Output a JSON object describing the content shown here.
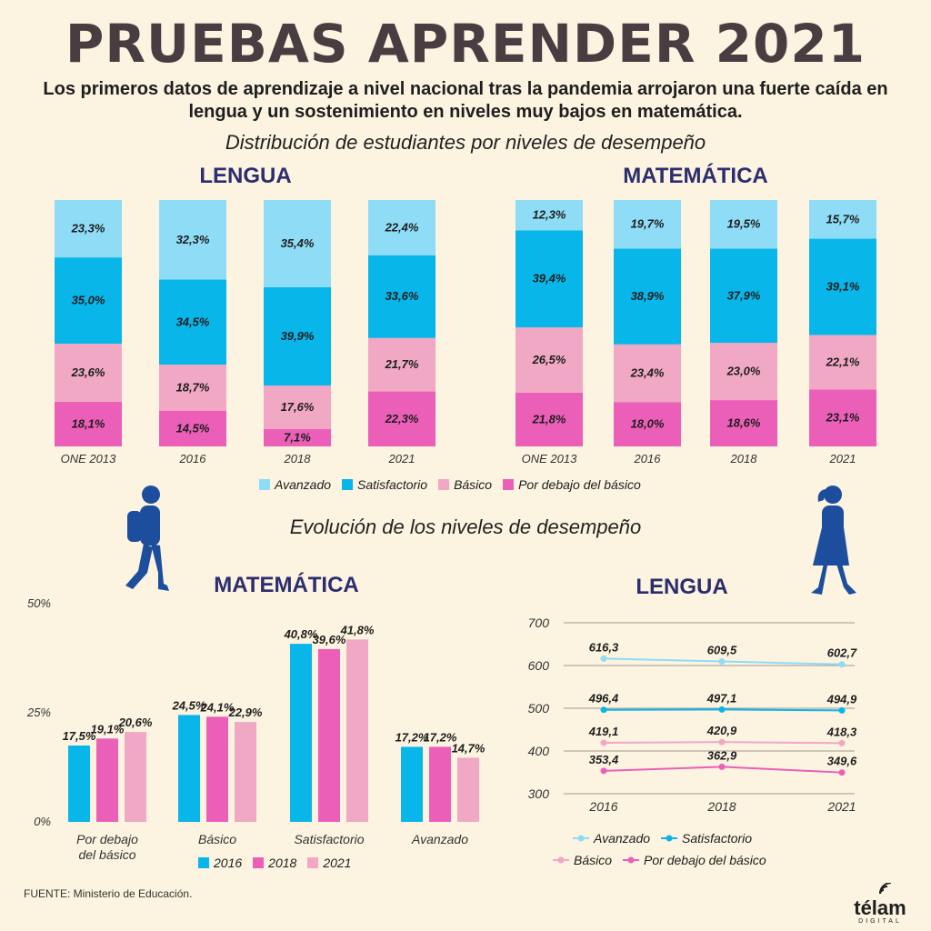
{
  "header": {
    "title": "PRUEBAS APRENDER 2021",
    "subtitle": "Los primeros datos de aprendizaje a nivel nacional tras la pandemia arrojaron una fuerte caída en lengua y un sostenimiento en niveles muy bajos en matemática."
  },
  "section1_title": "Distribución de estudiantes por niveles de desempeño",
  "section2_title": "Evolución de los niveles de desempeño",
  "colors": {
    "avanzado": "#8fdcf7",
    "satisfactorio": "#08b6ea",
    "basico": "#f0a8c4",
    "por_debajo": "#ec5fb8",
    "y2016": "#08b6ea",
    "y2018": "#ec5fb8",
    "y2021": "#f0a8c4",
    "heading": "#2b2d6e",
    "silhouette": "#1d4e9e"
  },
  "legend_levels": [
    "Avanzado",
    "Satisfactorio",
    "Básico",
    "Por debajo del básico"
  ],
  "legend_years": [
    "2016",
    "2018",
    "2021"
  ],
  "chart_data": [
    {
      "type": "bar",
      "stacked": true,
      "title": "LENGUA",
      "categories": [
        "ONE 2013",
        "2016",
        "2018",
        "2021"
      ],
      "series": [
        {
          "name": "Por debajo del básico",
          "values": [
            18.1,
            14.5,
            7.1,
            22.3
          ],
          "labels": [
            "18,1%",
            "14,5%",
            "7,1%",
            "22,3%"
          ]
        },
        {
          "name": "Básico",
          "values": [
            23.6,
            18.7,
            17.6,
            21.7
          ],
          "labels": [
            "23,6%",
            "18,7%",
            "17,6%",
            "21,7%"
          ]
        },
        {
          "name": "Satisfactorio",
          "values": [
            35.0,
            34.5,
            39.9,
            33.6
          ],
          "labels": [
            "35,0%",
            "34,5%",
            "39,9%",
            "33,6%"
          ]
        },
        {
          "name": "Avanzado",
          "values": [
            23.3,
            32.3,
            35.4,
            22.4
          ],
          "labels": [
            "23,3%",
            "32,3%",
            "35,4%",
            "22,4%"
          ]
        }
      ]
    },
    {
      "type": "bar",
      "stacked": true,
      "title": "MATEMÁTICA",
      "categories": [
        "ONE 2013",
        "2016",
        "2018",
        "2021"
      ],
      "series": [
        {
          "name": "Por debajo del básico",
          "values": [
            21.8,
            18.0,
            18.6,
            23.1
          ],
          "labels": [
            "21,8%",
            "18,0%",
            "18,6%",
            "23,1%"
          ]
        },
        {
          "name": "Básico",
          "values": [
            26.5,
            23.4,
            23.0,
            22.1
          ],
          "labels": [
            "26,5%",
            "23,4%",
            "23,0%",
            "22,1%"
          ]
        },
        {
          "name": "Satisfactorio",
          "values": [
            39.4,
            38.9,
            37.9,
            39.1
          ],
          "labels": [
            "39,4%",
            "38,9%",
            "37,9%",
            "39,1%"
          ]
        },
        {
          "name": "Avanzado",
          "values": [
            12.3,
            19.7,
            19.5,
            15.7
          ],
          "labels": [
            "12,3%",
            "19,7%",
            "19,5%",
            "15,7%"
          ]
        }
      ]
    },
    {
      "type": "bar",
      "title": "MATEMÁTICA",
      "categories": [
        "Por debajo|del básico",
        "Básico",
        "Satisfactorio",
        "Avanzado"
      ],
      "ylim": [
        0,
        50
      ],
      "yticks": [
        0,
        25,
        50
      ],
      "ytick_labels": [
        "0%",
        "25%",
        "50%"
      ],
      "series": [
        {
          "name": "2016",
          "values": [
            17.5,
            24.5,
            40.8,
            17.2
          ],
          "labels": [
            "17,5%",
            "24,5%",
            "40,8%",
            "17,2%"
          ]
        },
        {
          "name": "2018",
          "values": [
            19.1,
            24.1,
            39.6,
            17.2
          ],
          "labels": [
            "19,1%",
            "24,1%",
            "39,6%",
            "17,2%"
          ]
        },
        {
          "name": "2021",
          "values": [
            20.6,
            22.9,
            41.8,
            14.7
          ],
          "labels": [
            "20,6%",
            "22,9%",
            "41,8%",
            "14,7%"
          ]
        }
      ]
    },
    {
      "type": "line",
      "title": "LENGUA",
      "x": [
        "2016",
        "2018",
        "2021"
      ],
      "ylim": [
        300,
        700
      ],
      "yticks": [
        300,
        400,
        500,
        600,
        700
      ],
      "series": [
        {
          "name": "Avanzado",
          "values": [
            616.3,
            609.5,
            602.7
          ],
          "labels": [
            "616,3",
            "609,5",
            "602,7"
          ]
        },
        {
          "name": "Satisfactorio",
          "values": [
            496.4,
            497.1,
            494.9
          ],
          "labels": [
            "496,4",
            "497,1",
            "494,9"
          ]
        },
        {
          "name": "Básico",
          "values": [
            419.1,
            420.9,
            418.3
          ],
          "labels": [
            "419,1",
            "420,9",
            "418,3"
          ]
        },
        {
          "name": "Por debajo del básico",
          "values": [
            353.4,
            362.9,
            349.6
          ],
          "labels": [
            "353,4",
            "362,9",
            "349,6"
          ]
        }
      ]
    }
  ],
  "footer": {
    "source": "FUENTE: Ministerio de Educación.",
    "logo_text": "télam",
    "logo_sub": "DIGITAL"
  }
}
